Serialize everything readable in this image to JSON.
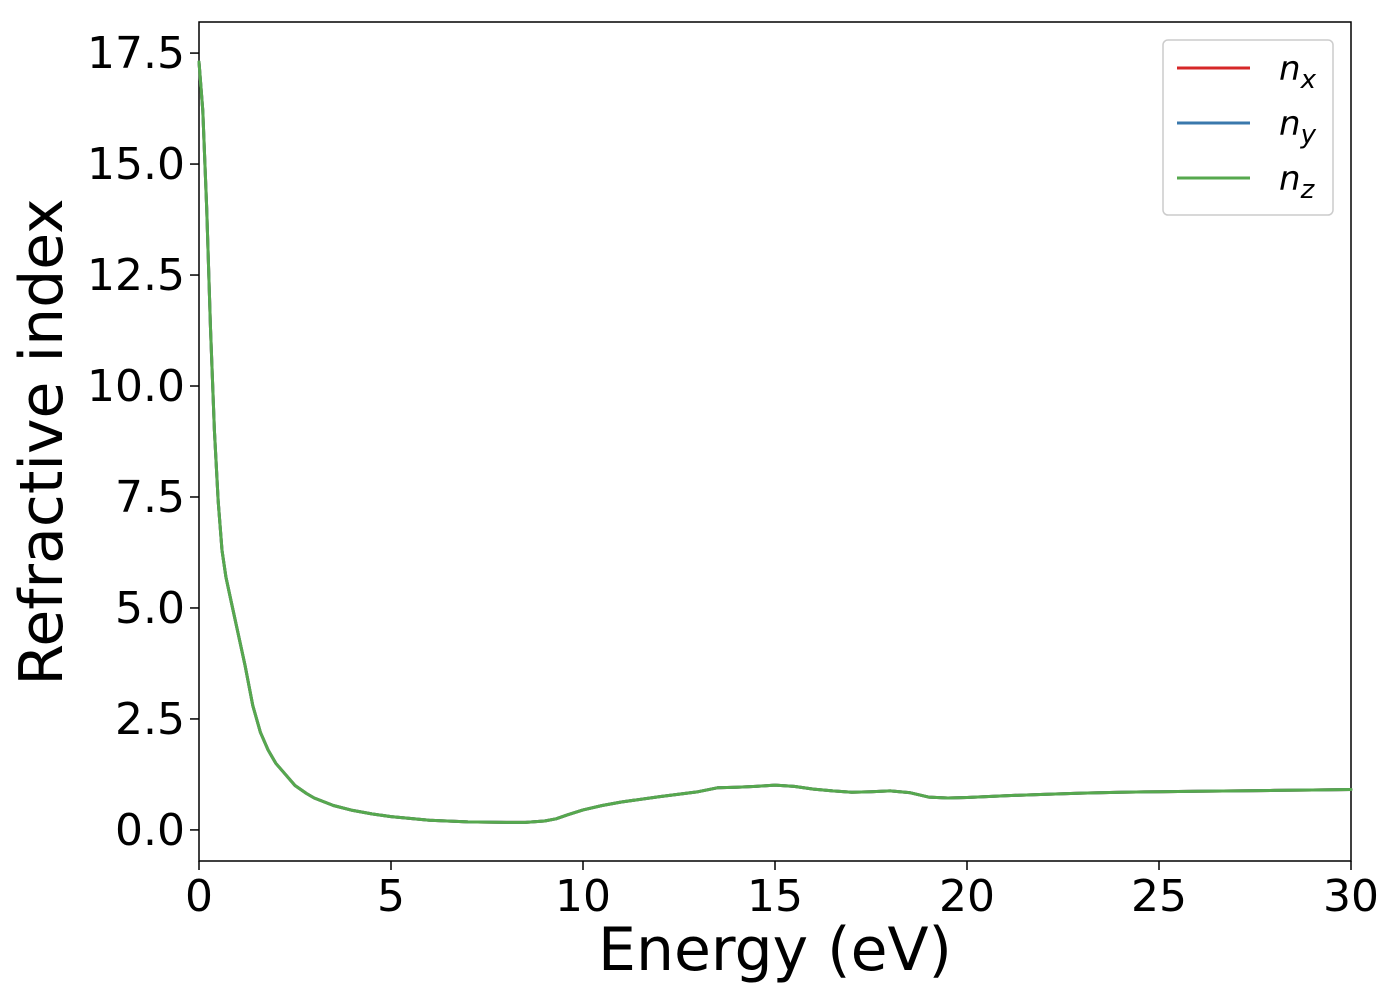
{
  "chart_data": {
    "type": "line",
    "title": "",
    "xlabel": "Energy (eV)",
    "ylabel": "Refractive index",
    "xlim": [
      0,
      30
    ],
    "ylim": [
      -0.7,
      18.2
    ],
    "xticks": [
      0,
      5,
      10,
      15,
      20,
      25,
      30
    ],
    "xtick_labels": [
      "0",
      "5",
      "10",
      "15",
      "20",
      "25",
      "30"
    ],
    "yticks": [
      0.0,
      2.5,
      5.0,
      7.5,
      10.0,
      12.5,
      15.0,
      17.5
    ],
    "ytick_labels": [
      "0.0",
      "2.5",
      "5.0",
      "7.5",
      "10.0",
      "12.5",
      "15.0",
      "17.5"
    ],
    "grid": false,
    "legend": {
      "position": "top-right",
      "entries": [
        {
          "base": "n",
          "sub": "x",
          "color": "#d62728"
        },
        {
          "base": "n",
          "sub": "y",
          "color": "#3a78ac"
        },
        {
          "base": "n",
          "sub": "z",
          "color": "#56a84e"
        }
      ]
    },
    "x": [
      0,
      0.1,
      0.2,
      0.3,
      0.4,
      0.5,
      0.6,
      0.7,
      0.85,
      1.0,
      1.2,
      1.4,
      1.6,
      1.8,
      2.0,
      2.2,
      2.5,
      2.8,
      3.0,
      3.5,
      4.0,
      4.5,
      5.0,
      6.0,
      7.0,
      8.0,
      8.5,
      9.0,
      9.3,
      9.6,
      10.0,
      10.5,
      11.0,
      12.0,
      13.0,
      13.5,
      14.0,
      14.5,
      15.0,
      15.5,
      16.0,
      16.5,
      17.0,
      17.5,
      18.0,
      18.5,
      19.0,
      19.5,
      20.0,
      21.0,
      22.0,
      23.0,
      24.0,
      25.0,
      26.0,
      27.0,
      28.0,
      29.0,
      30.0
    ],
    "series": [
      {
        "name": "n_x",
        "color": "#d62728",
        "values": [
          17.3,
          16.2,
          14.0,
          11.3,
          9.0,
          7.4,
          6.3,
          5.7,
          5.1,
          4.5,
          3.7,
          2.8,
          2.2,
          1.8,
          1.5,
          1.3,
          1.0,
          0.82,
          0.72,
          0.55,
          0.44,
          0.36,
          0.3,
          0.22,
          0.18,
          0.17,
          0.17,
          0.2,
          0.25,
          0.34,
          0.45,
          0.55,
          0.63,
          0.75,
          0.86,
          0.95,
          0.96,
          0.98,
          1.01,
          0.98,
          0.92,
          0.88,
          0.85,
          0.86,
          0.88,
          0.84,
          0.74,
          0.72,
          0.73,
          0.77,
          0.8,
          0.83,
          0.85,
          0.86,
          0.87,
          0.88,
          0.89,
          0.9,
          0.91
        ]
      },
      {
        "name": "n_y",
        "color": "#3a78ac",
        "values": [
          17.3,
          16.2,
          14.0,
          11.3,
          9.0,
          7.4,
          6.3,
          5.7,
          5.1,
          4.5,
          3.7,
          2.8,
          2.2,
          1.8,
          1.5,
          1.3,
          1.0,
          0.82,
          0.72,
          0.55,
          0.44,
          0.36,
          0.3,
          0.22,
          0.18,
          0.17,
          0.17,
          0.2,
          0.25,
          0.34,
          0.45,
          0.55,
          0.63,
          0.75,
          0.86,
          0.95,
          0.96,
          0.98,
          1.01,
          0.98,
          0.92,
          0.88,
          0.85,
          0.86,
          0.88,
          0.84,
          0.74,
          0.72,
          0.73,
          0.77,
          0.8,
          0.83,
          0.85,
          0.86,
          0.87,
          0.88,
          0.89,
          0.9,
          0.91
        ]
      },
      {
        "name": "n_z",
        "color": "#56a84e",
        "values": [
          17.3,
          16.2,
          14.0,
          11.3,
          9.0,
          7.4,
          6.3,
          5.7,
          5.1,
          4.5,
          3.7,
          2.8,
          2.2,
          1.8,
          1.5,
          1.3,
          1.0,
          0.82,
          0.72,
          0.55,
          0.44,
          0.36,
          0.3,
          0.22,
          0.18,
          0.17,
          0.17,
          0.2,
          0.25,
          0.34,
          0.45,
          0.55,
          0.63,
          0.75,
          0.86,
          0.95,
          0.96,
          0.98,
          1.01,
          0.98,
          0.92,
          0.88,
          0.85,
          0.86,
          0.88,
          0.84,
          0.74,
          0.72,
          0.73,
          0.77,
          0.8,
          0.83,
          0.85,
          0.86,
          0.87,
          0.88,
          0.89,
          0.9,
          0.91
        ]
      }
    ]
  }
}
